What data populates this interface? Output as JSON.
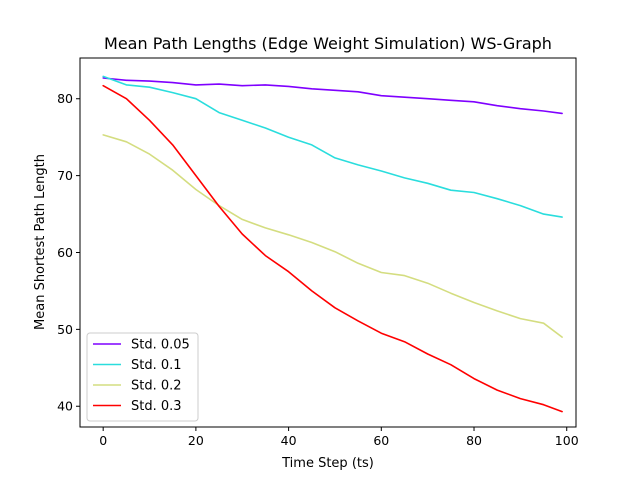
{
  "chart_data": {
    "type": "line",
    "title": "Mean Path Lengths (Edge Weight Simulation) WS-Graph",
    "xlabel": "Time Step (ts)",
    "ylabel": "Mean Shortest Path Length",
    "xlim": [
      -5,
      102
    ],
    "ylim": [
      37.3,
      85.3
    ],
    "xticks": [
      0,
      20,
      40,
      60,
      80,
      100
    ],
    "yticks": [
      40,
      50,
      60,
      70,
      80
    ],
    "grid": false,
    "legend_position": "lower-left",
    "x": [
      0,
      5,
      10,
      15,
      20,
      25,
      30,
      35,
      40,
      45,
      50,
      55,
      60,
      65,
      70,
      75,
      80,
      85,
      90,
      95,
      99
    ],
    "series": [
      {
        "name": "Std. 0.05",
        "color": "#7f00ff",
        "values": [
          82.7,
          82.4,
          82.3,
          82.1,
          81.8,
          81.9,
          81.7,
          81.8,
          81.6,
          81.3,
          81.1,
          80.9,
          80.4,
          80.2,
          80.0,
          79.8,
          79.6,
          79.1,
          78.7,
          78.4,
          78.1
        ]
      },
      {
        "name": "Std. 0.1",
        "color": "#2adddd",
        "values": [
          82.9,
          81.8,
          81.5,
          80.8,
          80.0,
          78.2,
          77.2,
          76.2,
          75.0,
          74.0,
          72.3,
          71.4,
          70.6,
          69.7,
          69.0,
          68.1,
          67.8,
          67.0,
          66.1,
          65.0,
          64.6
        ]
      },
      {
        "name": "Std. 0.2",
        "color": "#d4dd80",
        "values": [
          75.3,
          74.4,
          72.8,
          70.7,
          68.2,
          66.1,
          64.3,
          63.2,
          62.3,
          61.3,
          60.1,
          58.6,
          57.4,
          57.0,
          56.0,
          54.7,
          53.5,
          52.4,
          51.4,
          50.8,
          49.0
        ]
      },
      {
        "name": "Std. 0.3",
        "color": "#ff0000",
        "values": [
          81.7,
          80.0,
          77.2,
          74.0,
          70.0,
          66.0,
          62.4,
          59.6,
          57.5,
          55.0,
          52.8,
          51.1,
          49.5,
          48.4,
          46.8,
          45.4,
          43.6,
          42.1,
          41.0,
          40.2,
          39.3
        ]
      }
    ]
  }
}
